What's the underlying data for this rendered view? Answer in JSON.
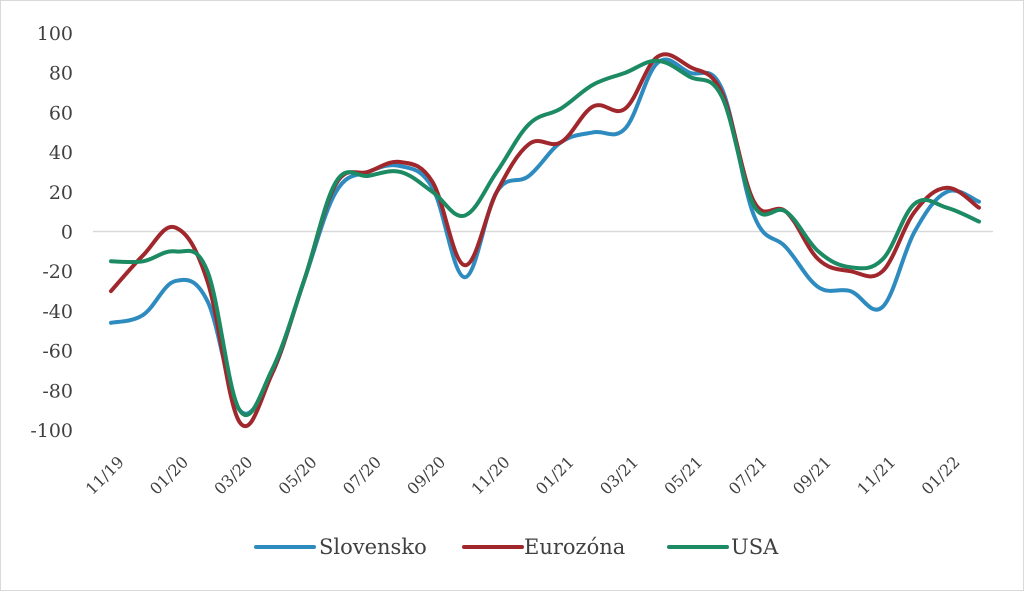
{
  "chart_data": {
    "type": "line",
    "title": "",
    "xlabel": "",
    "ylabel": "",
    "ylim": [
      -100,
      100
    ],
    "yticks": [
      100,
      80,
      60,
      40,
      20,
      0,
      -20,
      -40,
      -60,
      -80,
      -100
    ],
    "grid": "zero-line only",
    "legend_position": "bottom",
    "x": [
      "11/19",
      "12/19",
      "01/20",
      "02/20",
      "03/20",
      "04/20",
      "05/20",
      "06/20",
      "07/20",
      "08/20",
      "09/20",
      "10/20",
      "11/20",
      "12/20",
      "01/21",
      "02/21",
      "03/21",
      "04/21",
      "05/21",
      "06/21",
      "07/21",
      "08/21",
      "09/21",
      "10/21",
      "11/21",
      "12/21",
      "01/22",
      "02/22"
    ],
    "x_tick_labels": [
      "11/19",
      "01/20",
      "03/20",
      "05/20",
      "07/20",
      "09/20",
      "11/20",
      "01/21",
      "03/21",
      "05/21",
      "07/21",
      "09/21",
      "11/21",
      "01/22"
    ],
    "series": [
      {
        "name": "Slovensko",
        "color": "#2e8bc0",
        "values": [
          -46,
          -42,
          -25,
          -35,
          -90,
          -72,
          -25,
          20,
          30,
          33,
          22,
          -23,
          20,
          28,
          45,
          50,
          52,
          85,
          80,
          72,
          8,
          -8,
          -28,
          -30,
          -38,
          0,
          20,
          15
        ]
      },
      {
        "name": "Eurozóna",
        "color": "#a0282d",
        "values": [
          -30,
          -12,
          2,
          -25,
          -96,
          -72,
          -25,
          24,
          30,
          35,
          25,
          -17,
          20,
          44,
          45,
          63,
          62,
          88,
          83,
          70,
          15,
          10,
          -14,
          -20,
          -20,
          10,
          22,
          12
        ]
      },
      {
        "name": "USA",
        "color": "#1c8a62",
        "values": [
          -15,
          -15,
          -10,
          -20,
          -90,
          -70,
          -25,
          25,
          28,
          30,
          20,
          8,
          30,
          54,
          62,
          74,
          80,
          86,
          78,
          68,
          13,
          10,
          -10,
          -18,
          -14,
          14,
          12,
          5
        ]
      }
    ]
  }
}
